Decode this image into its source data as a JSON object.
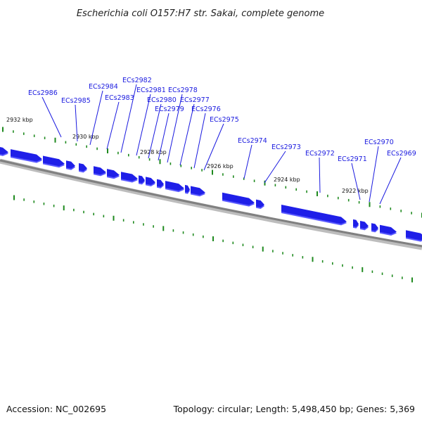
{
  "title": "Escherichia coli O157:H7 str. Sakai, complete genome",
  "footer": {
    "accession": "Accession: NC_002695",
    "summary": "Topology: circular; Length: 5,498,450 bp; Genes: 5,369"
  },
  "colors": {
    "gene_fill": "#1f1fe8",
    "gene_shade": "#5a5aff",
    "backbone": "#888888",
    "ticks": "#1f8a1f",
    "labels": "#1a1adf"
  },
  "kbp_labels": [
    "2932 kbp",
    "2930 kbp",
    "2928 kbp",
    "2926 kbp",
    "2924 kbp",
    "2922 kbp"
  ],
  "gene_labels": [
    "ECs2986",
    "ECs2985",
    "ECs2984",
    "ECs2983",
    "ECs2982",
    "ECs2981",
    "ECs2980",
    "ECs2979",
    "ECs2978",
    "ECs2977",
    "ECs2976",
    "ECs2975",
    "ECs2974",
    "ECs2973",
    "ECs2972",
    "ECs2971",
    "ECs2970",
    "ECs2969"
  ]
}
